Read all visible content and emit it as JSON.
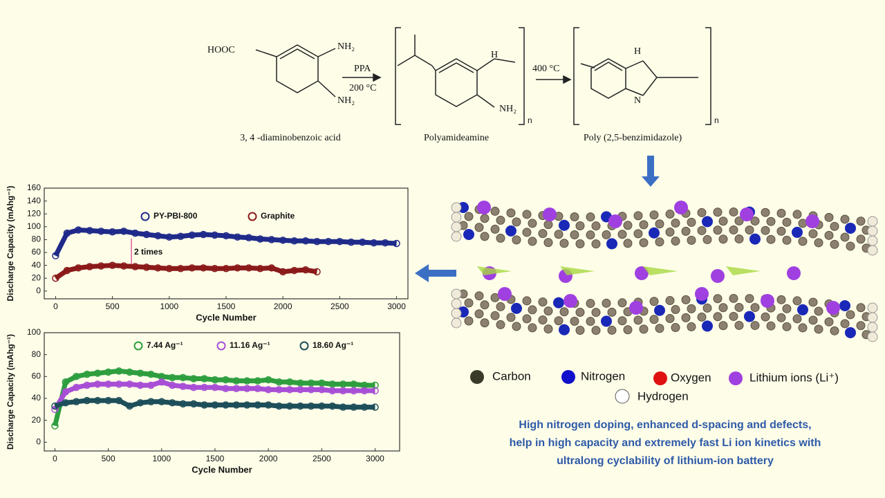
{
  "scheme": {
    "hooc": "HOOC",
    "nh2": "NH₂",
    "h": "H",
    "h_ring": "H",
    "n": "N",
    "n_repeat": "n",
    "step1_reagent": "PPA",
    "step1_temp": "200 °C",
    "step2_temp": "400 °C",
    "compounds": [
      "3, 4 -diaminobenzoic acid",
      "Polyamideamine",
      "Poly (2,5-benzimidazole)"
    ]
  },
  "chart_data": [
    {
      "type": "scatter",
      "ylabel": "Discharge Capacity (mAhg⁻¹)",
      "xlabel": "Cycle Number",
      "annotation": "2 times",
      "xlim": [
        -100,
        3100
      ],
      "ylim": [
        -12,
        160
      ],
      "xticks": [
        0,
        500,
        1000,
        1500,
        2000,
        2500,
        3000
      ],
      "yticks": [
        0,
        20,
        40,
        60,
        80,
        100,
        120,
        140,
        160
      ],
      "series": [
        {
          "name": "PY-PBI-800",
          "color": "#1f2a8a",
          "x": [
            0,
            100,
            200,
            300,
            400,
            500,
            600,
            700,
            800,
            900,
            1000,
            1100,
            1200,
            1300,
            1400,
            1500,
            1600,
            1700,
            1800,
            1900,
            2000,
            2100,
            2200,
            2300,
            2400,
            2500,
            2600,
            2700,
            2800,
            2900,
            3000
          ],
          "values": [
            55,
            90,
            95,
            94,
            93,
            92,
            93,
            90,
            88,
            86,
            84,
            85,
            87,
            88,
            87,
            86,
            84,
            83,
            81,
            80,
            79,
            78,
            78,
            77,
            77,
            77,
            76,
            76,
            75,
            75,
            74
          ]
        },
        {
          "name": "Graphite",
          "color": "#8b1a1a",
          "x": [
            0,
            100,
            200,
            300,
            400,
            500,
            600,
            700,
            800,
            900,
            1000,
            1100,
            1200,
            1300,
            1400,
            1500,
            1600,
            1700,
            1800,
            1900,
            2000,
            2100,
            2200,
            2300
          ],
          "values": [
            20,
            32,
            36,
            38,
            39,
            40,
            39,
            38,
            37,
            36,
            35,
            35,
            36,
            36,
            35,
            35,
            36,
            36,
            35,
            36,
            30,
            32,
            33,
            30
          ]
        }
      ]
    },
    {
      "type": "scatter",
      "ylabel": "Discharge Capacity (mAhg⁻¹)",
      "xlabel": "Cycle Number",
      "xlim": [
        -100,
        3230
      ],
      "ylim": [
        -8,
        100
      ],
      "xticks": [
        0,
        500,
        1000,
        1500,
        2000,
        2500,
        3000
      ],
      "yticks": [
        0,
        20,
        40,
        60,
        80,
        100
      ],
      "series": [
        {
          "name": "7.44 Ag⁻¹",
          "color": "#2e9e3e",
          "x": [
            0,
            100,
            200,
            300,
            400,
            500,
            600,
            700,
            800,
            900,
            1000,
            1100,
            1200,
            1300,
            1400,
            1500,
            1600,
            1700,
            1800,
            1900,
            2000,
            2100,
            2200,
            2300,
            2400,
            2500,
            2600,
            2700,
            2800,
            2900,
            3000
          ],
          "values": [
            15,
            55,
            60,
            62,
            63,
            64,
            65,
            64,
            63,
            62,
            60,
            59,
            59,
            58,
            58,
            57,
            57,
            56,
            56,
            56,
            57,
            55,
            55,
            54,
            54,
            54,
            53,
            53,
            53,
            52,
            52
          ]
        },
        {
          "name": "11.16 Ag⁻¹",
          "color": "#a84fd6",
          "x": [
            0,
            100,
            200,
            300,
            400,
            500,
            600,
            700,
            800,
            900,
            1000,
            1100,
            1200,
            1300,
            1400,
            1500,
            1600,
            1700,
            1800,
            1900,
            2000,
            2100,
            2200,
            2300,
            2400,
            2500,
            2600,
            2700,
            2800,
            2900,
            3000
          ],
          "values": [
            30,
            46,
            50,
            52,
            53,
            53,
            53,
            53,
            52,
            52,
            55,
            52,
            51,
            50,
            50,
            50,
            49,
            49,
            49,
            49,
            48,
            48,
            48,
            48,
            48,
            48,
            47,
            47,
            47,
            47,
            47
          ]
        },
        {
          "name": "18.60 Ag⁻¹",
          "color": "#1d4e5a",
          "x": [
            0,
            100,
            200,
            300,
            400,
            500,
            600,
            700,
            800,
            900,
            1000,
            1100,
            1200,
            1300,
            1400,
            1500,
            1600,
            1700,
            1800,
            1900,
            2000,
            2100,
            2200,
            2300,
            2400,
            2500,
            2600,
            2700,
            2800,
            2900,
            3000
          ],
          "values": [
            33,
            36,
            37,
            38,
            38,
            38,
            38,
            33,
            36,
            37,
            37,
            36,
            35,
            35,
            34,
            34,
            34,
            34,
            34,
            34,
            34,
            33,
            33,
            33,
            33,
            33,
            33,
            32,
            32,
            32,
            32
          ]
        }
      ]
    }
  ],
  "atom_legend": [
    "Carbon",
    "Nitrogen",
    "Oxygen",
    "Lithium ions (Li⁺)",
    "Hydrogen"
  ],
  "caption": [
    "High nitrogen doping, enhanced d-spacing and defects,",
    "help in high capacity and extremely fast Li ion kinetics with",
    "ultralong cyclability of lithium-ion battery"
  ]
}
